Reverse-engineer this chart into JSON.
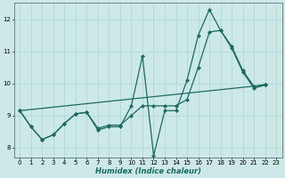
{
  "xlabel": "Humidex (Indice chaleur)",
  "bg_color": "#cde8e8",
  "line_color": "#1a6b5e",
  "grid_color": "#b0d8d8",
  "xlim": [
    -0.5,
    23.5
  ],
  "ylim": [
    7.7,
    12.5
  ],
  "yticks": [
    8,
    9,
    10,
    11,
    12
  ],
  "xticks": [
    0,
    1,
    2,
    3,
    4,
    5,
    6,
    7,
    8,
    9,
    10,
    11,
    12,
    13,
    14,
    15,
    16,
    17,
    18,
    19,
    20,
    21,
    22,
    23
  ],
  "series1_x": [
    0,
    1,
    2,
    3,
    4,
    5,
    6,
    7,
    8,
    9,
    10,
    11,
    12,
    13,
    14,
    15,
    16,
    17,
    18,
    19,
    20,
    21,
    22
  ],
  "series1_y": [
    9.15,
    8.65,
    8.25,
    8.4,
    8.75,
    9.05,
    9.1,
    8.55,
    8.65,
    8.65,
    9.3,
    10.85,
    7.75,
    9.15,
    9.15,
    10.1,
    11.5,
    12.3,
    11.65,
    11.1,
    10.35,
    9.85,
    9.95
  ],
  "series2_x": [
    0,
    1,
    2,
    3,
    4,
    5,
    6,
    7,
    8,
    9,
    10,
    11,
    12,
    13,
    14,
    15,
    16,
    17,
    18,
    19,
    20,
    21,
    22
  ],
  "series2_y": [
    9.15,
    8.65,
    8.25,
    8.4,
    8.75,
    9.05,
    9.1,
    8.6,
    8.7,
    8.7,
    9.0,
    9.3,
    9.3,
    9.3,
    9.3,
    9.5,
    10.5,
    11.6,
    11.65,
    11.15,
    10.4,
    9.9,
    9.97
  ],
  "series3_x": [
    0,
    22
  ],
  "series3_y": [
    9.15,
    9.95
  ],
  "marker": "D",
  "markersize": 2.2,
  "linewidth": 0.9
}
